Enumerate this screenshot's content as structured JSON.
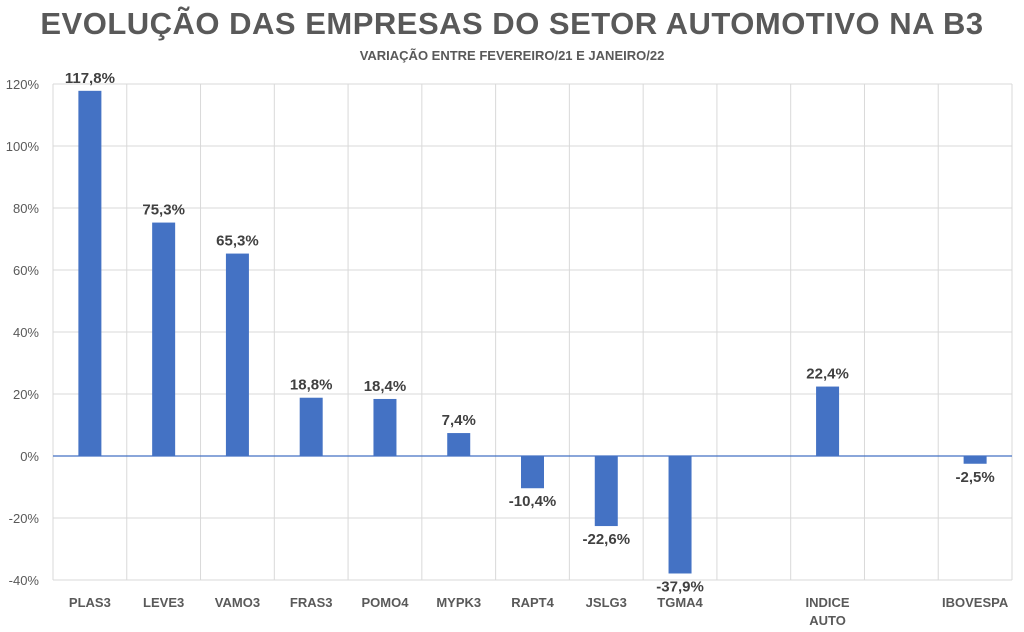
{
  "chart_data": {
    "type": "bar",
    "title": "EVOLUÇÃO DAS EMPRESAS DO SETOR AUTOMOTIVO NA B3",
    "subtitle": "VARIAÇÃO ENTRE FEVEREIRO/21 E JANEIRO/22",
    "xlabel": "",
    "ylabel": "",
    "ylim": [
      -40,
      120
    ],
    "yticks": [
      -40,
      -20,
      0,
      20,
      40,
      60,
      80,
      100,
      120
    ],
    "ytick_labels": [
      "-40%",
      "-20%",
      "0%",
      "20%",
      "40%",
      "60%",
      "80%",
      "100%",
      "120%"
    ],
    "grid": true,
    "bar_color": "#4472C4",
    "categories": [
      "PLAS3",
      "LEVE3",
      "VAMO3",
      "FRAS3",
      "POMO4",
      "MYPK3",
      "RAPT4",
      "JSLG3",
      "TGMA4",
      "",
      "INDICE AUTO",
      "",
      "IBOVESPA"
    ],
    "category_lines": [
      [
        "PLAS3"
      ],
      [
        "LEVE3"
      ],
      [
        "VAMO3"
      ],
      [
        "FRAS3"
      ],
      [
        "POMO4"
      ],
      [
        "MYPK3"
      ],
      [
        "RAPT4"
      ],
      [
        "JSLG3"
      ],
      [
        "TGMA4"
      ],
      [],
      [
        "INDICE",
        "AUTO"
      ],
      [],
      [
        "IBOVESPA"
      ]
    ],
    "values": [
      117.8,
      75.3,
      65.3,
      18.8,
      18.4,
      7.4,
      -10.4,
      -22.6,
      -37.9,
      null,
      22.4,
      null,
      -2.5
    ],
    "data_labels": [
      "117,8%",
      "75,3%",
      "65,3%",
      "18,8%",
      "18,4%",
      "7,4%",
      "-10,4%",
      "-22,6%",
      "-37,9%",
      "",
      "22,4%",
      "",
      "-2,5%"
    ]
  }
}
